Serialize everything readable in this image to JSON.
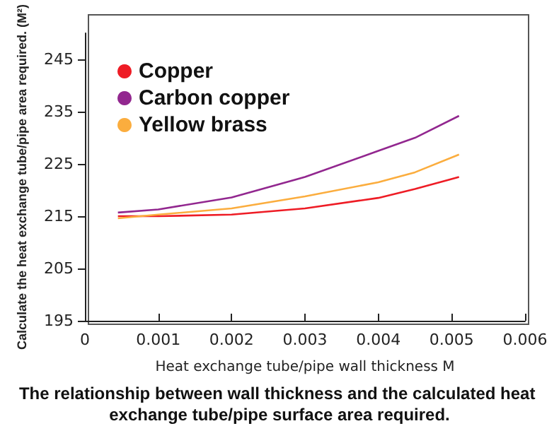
{
  "chart_data": {
    "type": "line",
    "title": "The relationship between wall thickness and the calculated heat exchange tube/pipe surface area required.",
    "xlabel": "Heat exchange tube/pipe wall thickness M",
    "ylabel": "Calculate the heat exchange tube/pipe area required. (M²)",
    "x": [
      0.00045,
      0.001,
      0.002,
      0.003,
      0.004,
      0.0045,
      0.0051
    ],
    "series": [
      {
        "name": "Copper",
        "color": "#ee1c25",
        "values": [
          215,
          215,
          215.3,
          216.5,
          218.5,
          220.2,
          222.5
        ]
      },
      {
        "name": "Carbon copper",
        "color": "#92278f",
        "values": [
          215.7,
          216.3,
          218.6,
          222.5,
          227.5,
          230,
          234.2
        ]
      },
      {
        "name": "Yellow brass",
        "color": "#fbad3e",
        "values": [
          214.6,
          215.3,
          216.5,
          218.8,
          221.5,
          223.4,
          226.8
        ]
      }
    ],
    "xlim": [
      0,
      0.006
    ],
    "xticks": [
      0,
      0.001,
      0.002,
      0.003,
      0.004,
      0.005,
      0.006
    ],
    "ylim": [
      195,
      250
    ],
    "yticks": [
      195,
      205,
      215,
      225,
      235,
      245
    ],
    "grid": false,
    "legend": "top left",
    "marker": "none",
    "line_style": "solid"
  }
}
